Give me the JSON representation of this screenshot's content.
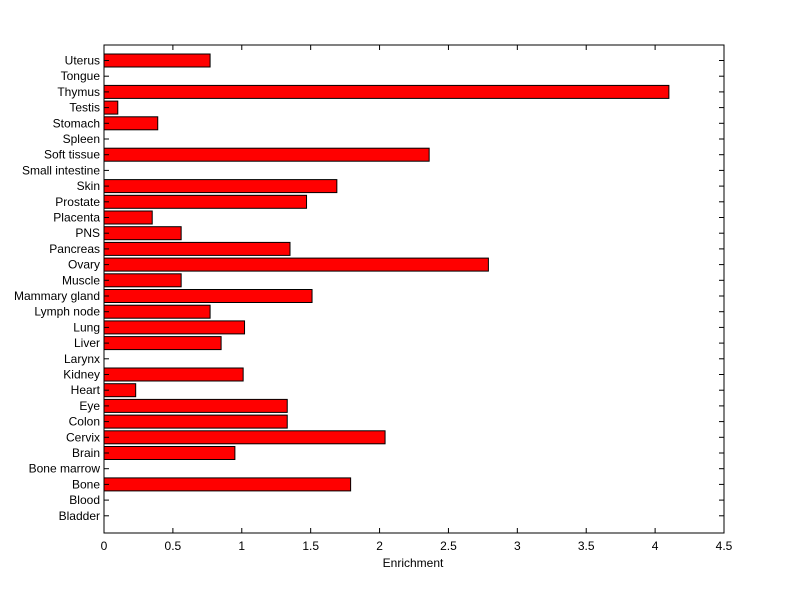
{
  "chart_data": {
    "type": "bar",
    "orientation": "horizontal",
    "categories": [
      "Uterus",
      "Tongue",
      "Thymus",
      "Testis",
      "Stomach",
      "Spleen",
      "Soft tissue",
      "Small intestine",
      "Skin",
      "Prostate",
      "Placenta",
      "PNS",
      "Pancreas",
      "Ovary",
      "Muscle",
      "Mammary gland",
      "Lymph node",
      "Lung",
      "Liver",
      "Larynx",
      "Kidney",
      "Heart",
      "Eye",
      "Colon",
      "Cervix",
      "Brain",
      "Bone marrow",
      "Bone",
      "Blood",
      "Bladder"
    ],
    "values": [
      0.77,
      0,
      4.1,
      0.1,
      0.39,
      0,
      2.36,
      0,
      1.69,
      1.47,
      0.35,
      0.56,
      1.35,
      2.79,
      0.56,
      1.51,
      0.77,
      1.02,
      0.85,
      0,
      1.01,
      0.23,
      1.33,
      1.33,
      2.04,
      0.95,
      0,
      1.79,
      0,
      0
    ],
    "xlabel": "Enrichment",
    "ylabel": "",
    "title": "",
    "xlim": [
      0,
      4.5
    ],
    "xticks": [
      "0",
      "0.5",
      "1",
      "1.5",
      "2",
      "2.5",
      "3",
      "3.5",
      "4",
      "4.5"
    ],
    "bar_color": "#ff0000",
    "grid": false,
    "legend": "none"
  }
}
